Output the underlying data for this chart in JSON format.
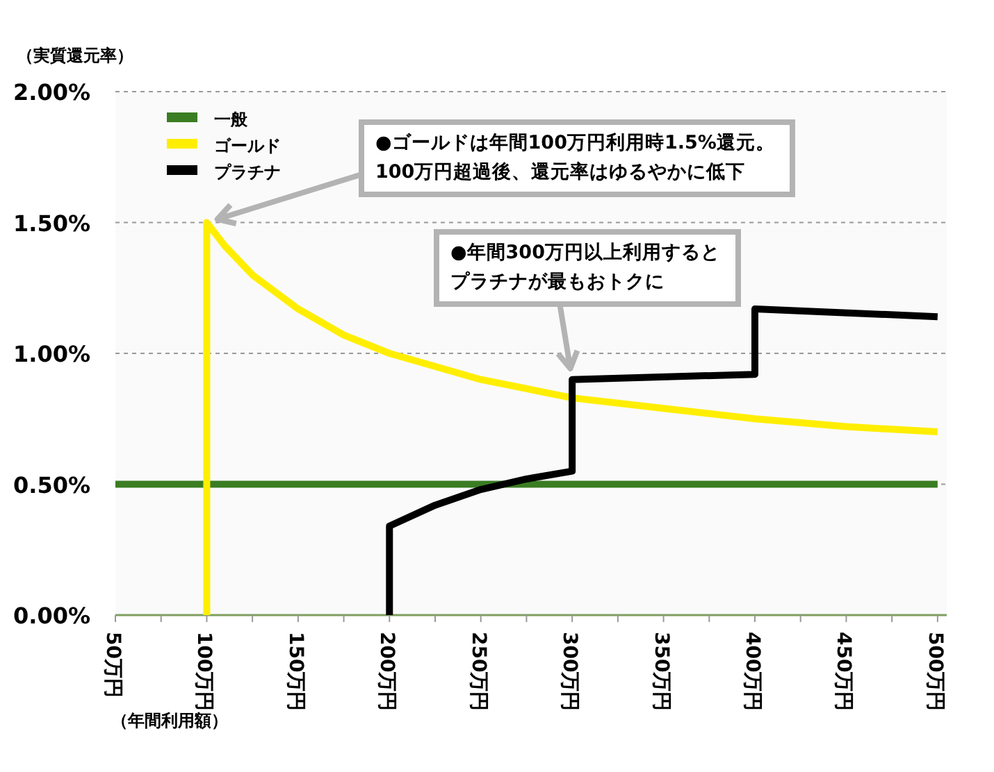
{
  "chart_data": {
    "type": "line",
    "ylabel": "（実質還元率）",
    "xlabel": "（年間利用額）",
    "xlim": [
      50,
      505
    ],
    "ylim": [
      0,
      2
    ],
    "xticks": [
      {
        "value": 50,
        "label": "50万円"
      },
      {
        "value": 75,
        "label": null
      },
      {
        "value": 100,
        "label": "100万円"
      },
      {
        "value": 125,
        "label": null
      },
      {
        "value": 150,
        "label": "150万円"
      },
      {
        "value": 175,
        "label": null
      },
      {
        "value": 200,
        "label": "200万円"
      },
      {
        "value": 225,
        "label": null
      },
      {
        "value": 250,
        "label": "250万円"
      },
      {
        "value": 275,
        "label": null
      },
      {
        "value": 300,
        "label": "300万円"
      },
      {
        "value": 325,
        "label": null
      },
      {
        "value": 350,
        "label": "350万円"
      },
      {
        "value": 375,
        "label": null
      },
      {
        "value": 400,
        "label": "400万円"
      },
      {
        "value": 425,
        "label": null
      },
      {
        "value": 450,
        "label": "450万円"
      },
      {
        "value": 475,
        "label": null
      },
      {
        "value": 500,
        "label": "500万円"
      }
    ],
    "yticks": [
      {
        "value": 0,
        "label": "0.00%"
      },
      {
        "value": 0.5,
        "label": "0.50%"
      },
      {
        "value": 1,
        "label": "1.00%"
      },
      {
        "value": 1.5,
        "label": "1.50%"
      },
      {
        "value": 2,
        "label": "2.00%"
      }
    ],
    "grid": "y",
    "legend": "top left",
    "series": [
      {
        "name": "一般",
        "color": "#3a7d22",
        "x": [
          50,
          500
        ],
        "values": [
          0.5,
          0.5
        ]
      },
      {
        "name": "ゴールド",
        "color": "#ffee00",
        "x": [
          100,
          100,
          110,
          125,
          150,
          175,
          200,
          250,
          300,
          350,
          400,
          450,
          500
        ],
        "values": [
          0,
          1.5,
          1.41,
          1.3,
          1.17,
          1.07,
          1.0,
          0.9,
          0.83,
          0.79,
          0.75,
          0.72,
          0.7
        ]
      },
      {
        "name": "プラチナ",
        "color": "#000000",
        "x": [
          200,
          200,
          225,
          250,
          275,
          300,
          300,
          400,
          400,
          500
        ],
        "values": [
          0,
          0.34,
          0.42,
          0.48,
          0.52,
          0.55,
          0.9,
          0.92,
          1.17,
          1.14
        ]
      }
    ],
    "annotations": [
      {
        "text": "●ゴールドは年間100万円利用時1.5%還元。100万円超過後、還元率はゆるやかに低下",
        "x": 100,
        "y": 1.5
      },
      {
        "text": "●年間300万円以上利用するとプラチナが最もおトクに",
        "x": 300,
        "y": 0.9
      }
    ]
  }
}
